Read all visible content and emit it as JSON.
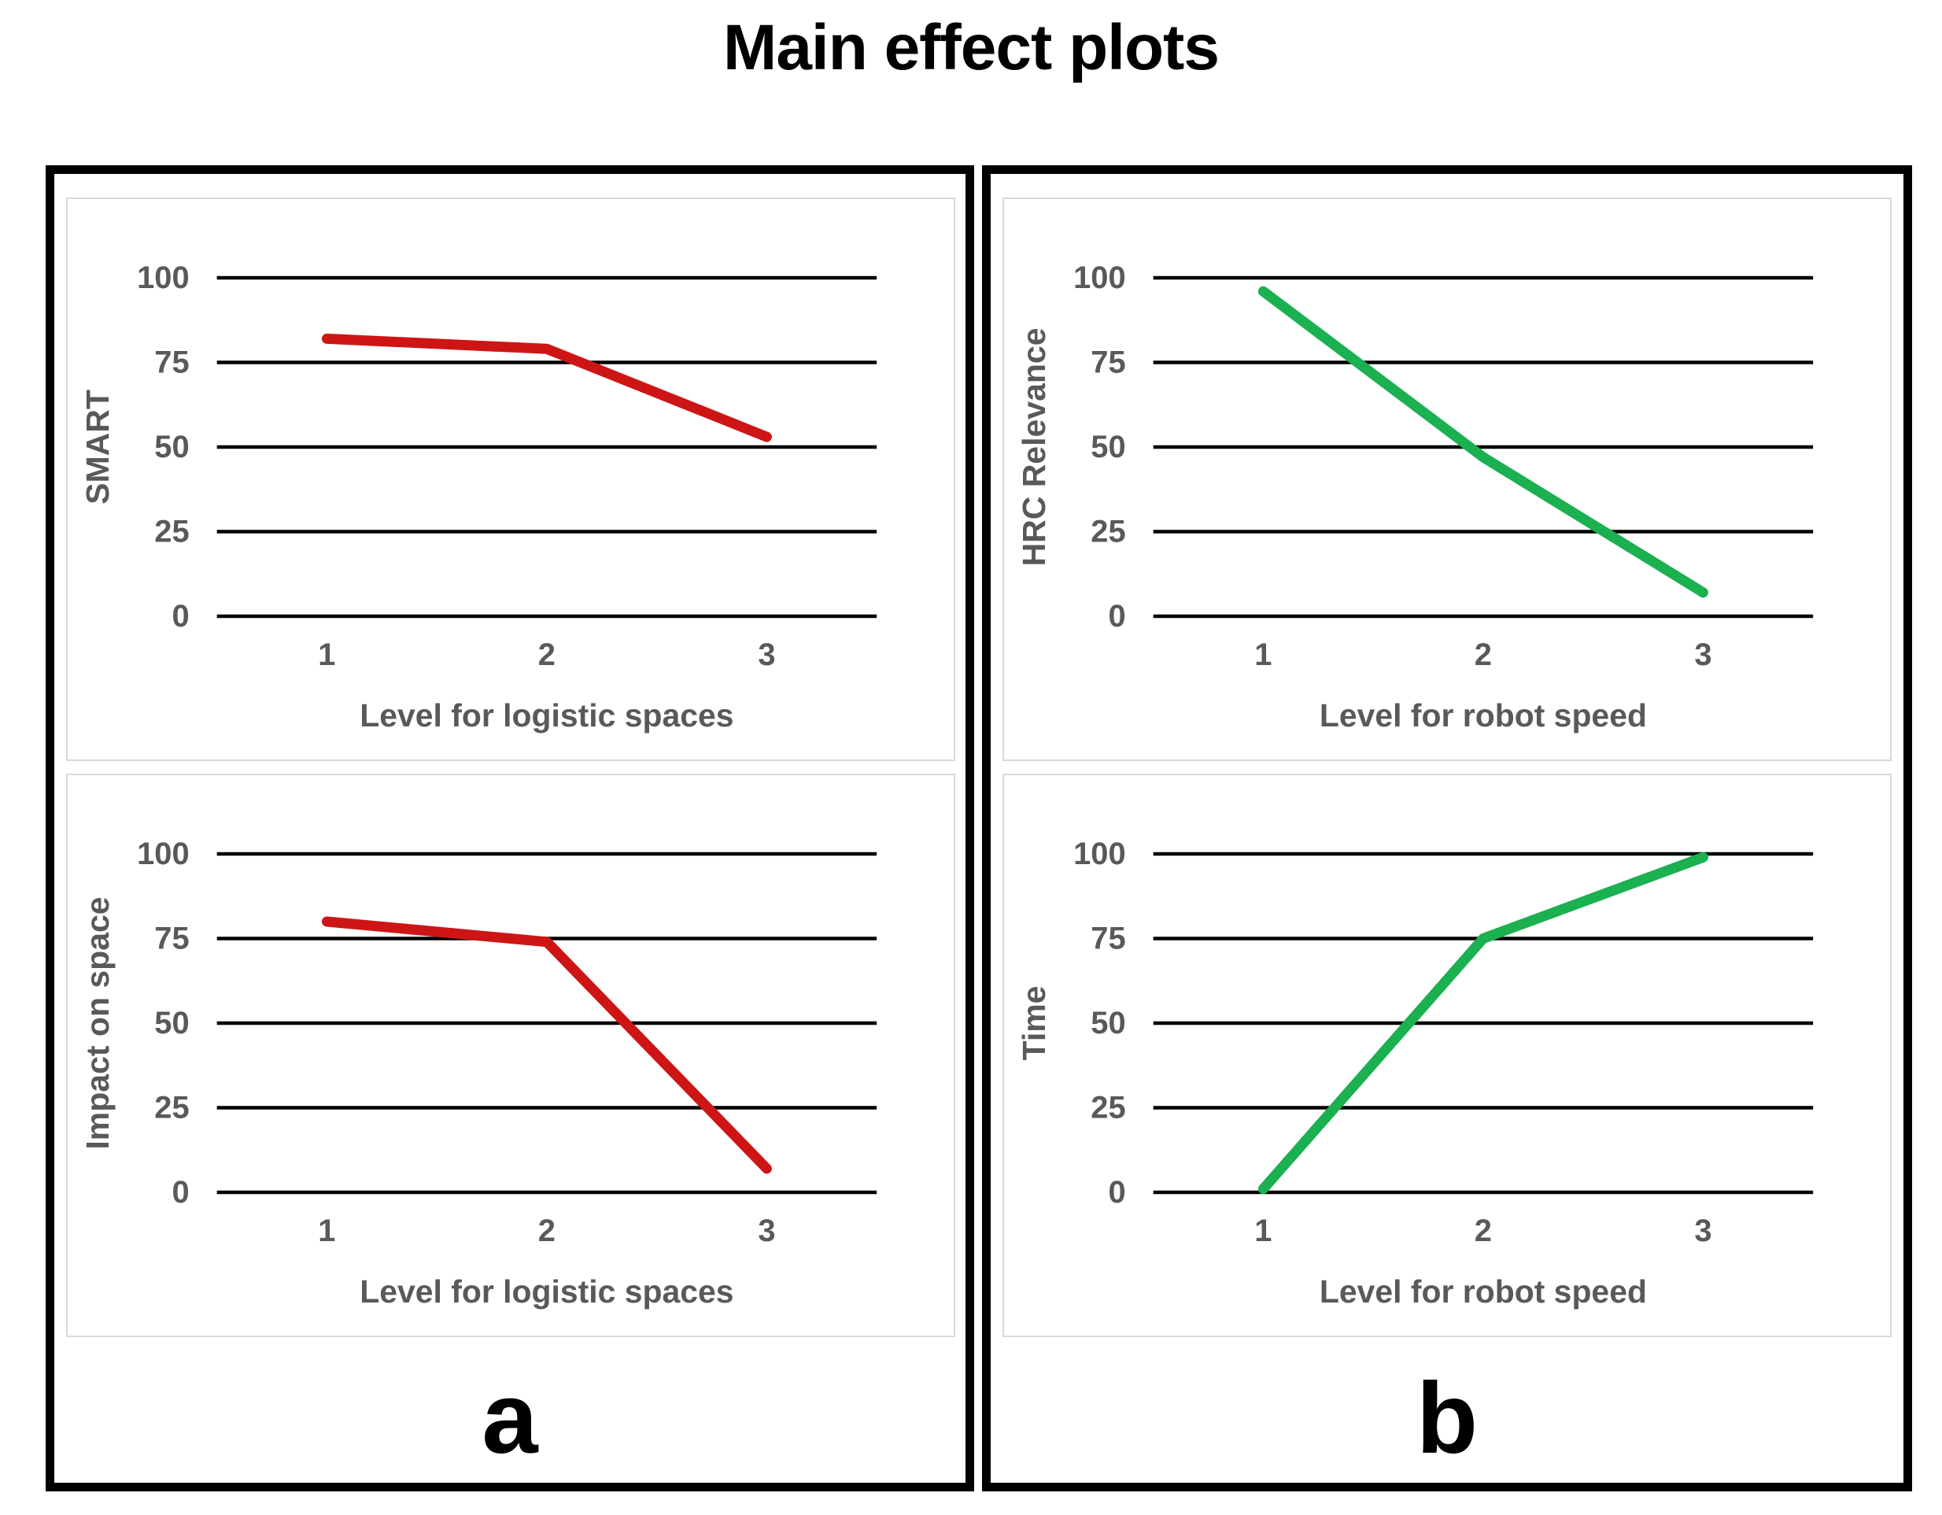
{
  "page_title": "Main effect plots",
  "colors": {
    "red_series": "#CE1515",
    "green_series": "#1BB050",
    "axis_text": "#595959",
    "gridline": "#000000",
    "panel_border": "#000000",
    "chart_box_border": "#D9D9D9",
    "background": "#FFFFFF"
  },
  "panels": [
    {
      "label": "a",
      "chart_indexes": [
        0,
        2
      ]
    },
    {
      "label": "b",
      "chart_indexes": [
        1,
        3
      ]
    }
  ],
  "chart_data": [
    {
      "type": "line",
      "title": "",
      "x": [
        1,
        2,
        3
      ],
      "values": [
        82,
        79,
        53
      ],
      "xlabel": "Level for logistic spaces",
      "ylabel": "SMART",
      "yticks": [
        0,
        25,
        50,
        75,
        100
      ],
      "ylim": [
        0,
        100
      ],
      "grid": true,
      "legend": "none",
      "line_color": "#CE1515"
    },
    {
      "type": "line",
      "title": "",
      "x": [
        1,
        2,
        3
      ],
      "values": [
        96,
        47,
        7
      ],
      "xlabel": "Level for robot speed",
      "ylabel": "HRC Relevance",
      "yticks": [
        0,
        25,
        50,
        75,
        100
      ],
      "ylim": [
        0,
        100
      ],
      "grid": true,
      "legend": "none",
      "line_color": "#1BB050"
    },
    {
      "type": "line",
      "title": "",
      "x": [
        1,
        2,
        3
      ],
      "values": [
        80,
        74,
        7
      ],
      "xlabel": "Level for logistic spaces",
      "ylabel": "Impact on space",
      "yticks": [
        0,
        25,
        50,
        75,
        100
      ],
      "ylim": [
        0,
        100
      ],
      "grid": true,
      "legend": "none",
      "line_color": "#CE1515"
    },
    {
      "type": "line",
      "title": "",
      "x": [
        1,
        2,
        3
      ],
      "values": [
        1,
        75,
        99
      ],
      "xlabel": "Level for robot speed",
      "ylabel": "Time",
      "yticks": [
        0,
        25,
        50,
        75,
        100
      ],
      "ylim": [
        0,
        100
      ],
      "grid": true,
      "legend": "none",
      "line_color": "#1BB050"
    }
  ]
}
